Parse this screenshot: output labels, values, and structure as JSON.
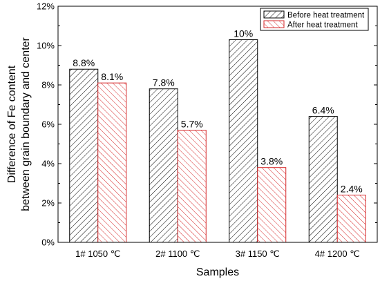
{
  "chart_data": {
    "type": "bar",
    "title": "",
    "xlabel": "Samples",
    "ylabel": "Difference of Fe content between grain boundary and center",
    "ylabel_lines": [
      "Difference of Fe content",
      "between grain boundary and center"
    ],
    "categories": [
      "1# 1050 ℃",
      "2# 1100 ℃",
      "3# 1150 ℃",
      "4# 1200 ℃"
    ],
    "series": [
      {
        "name": "Before heat treatment",
        "values": [
          8.8,
          7.8,
          10.3,
          6.4
        ],
        "labels": [
          "8.8%",
          "7.8%",
          "10%",
          "6.4%"
        ],
        "color": "#000000"
      },
      {
        "name": "After heat treatment",
        "values": [
          8.1,
          5.7,
          3.8,
          2.4
        ],
        "labels": [
          "8.1%",
          "5.7%",
          "3.8%",
          "2.4%"
        ],
        "color": "#d62728"
      }
    ],
    "ylim": [
      0,
      12
    ],
    "yticks": [
      0,
      2,
      4,
      6,
      8,
      10,
      12
    ],
    "ytick_labels": [
      "0%",
      "2%",
      "4%",
      "6%",
      "8%",
      "10%",
      "12%"
    ],
    "legend_position": "top-right",
    "grid": false
  }
}
